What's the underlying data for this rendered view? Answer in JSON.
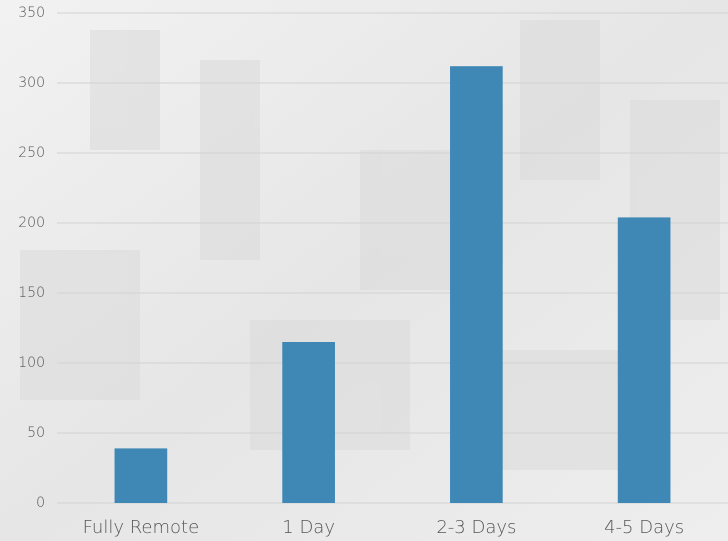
{
  "chart_data": {
    "type": "bar",
    "categories": [
      "Fully Remote",
      "1 Day",
      "2-3 Days",
      "4-5 Days"
    ],
    "values": [
      39,
      115,
      312,
      204
    ],
    "color": "#3f87b5",
    "ylim": [
      0,
      350
    ],
    "yticks": [
      0,
      50,
      100,
      150,
      200,
      250,
      300,
      350
    ],
    "grid": true
  }
}
